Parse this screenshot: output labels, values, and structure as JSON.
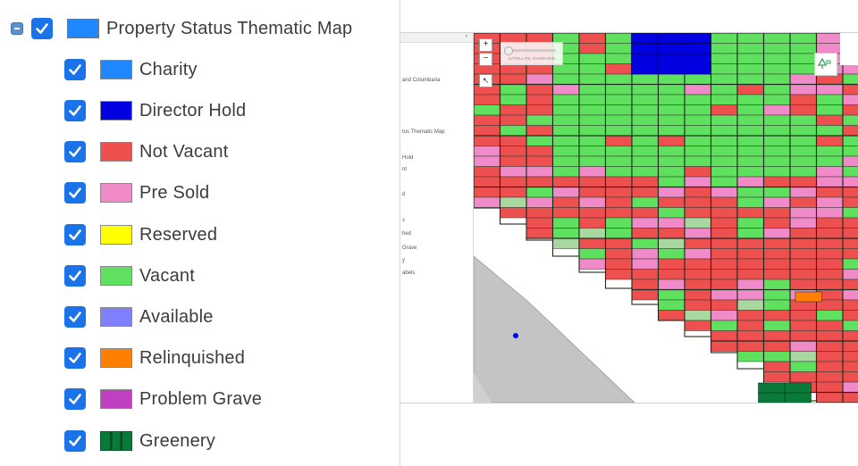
{
  "legend": {
    "root": {
      "label": "Property Status Thematic Map",
      "color": "#1f87ff",
      "checked": true
    },
    "items": [
      {
        "label": "Charity",
        "color": "#1f87ff",
        "checked": true
      },
      {
        "label": "Director Hold",
        "color": "#0000e0",
        "checked": true
      },
      {
        "label": "Not Vacant",
        "color": "#ee5050",
        "checked": true
      },
      {
        "label": "Pre Sold",
        "color": "#f08ac8",
        "checked": true
      },
      {
        "label": "Reserved",
        "color": "#ffff00",
        "checked": true
      },
      {
        "label": "Vacant",
        "color": "#5fe05f",
        "checked": true
      },
      {
        "label": "Available",
        "color": "#8080ff",
        "checked": true
      },
      {
        "label": "Relinquished",
        "color": "#ff7f00",
        "checked": true
      },
      {
        "label": "Problem Grave",
        "color": "#c040c0",
        "checked": true
      },
      {
        "label": "Greenery",
        "color": "#0a7a3a",
        "checked": true
      }
    ]
  },
  "map": {
    "side_panel_fragments": [
      "and Columbaria",
      "tus Thematic Map",
      "Hold",
      "nt",
      "d",
      "s",
      "hed",
      "Grave",
      "y",
      "abels"
    ],
    "zoom_in": "+",
    "zoom_out": "−",
    "select_tool": "↖",
    "overview_label": "SATELLITE OVERVIEW"
  }
}
